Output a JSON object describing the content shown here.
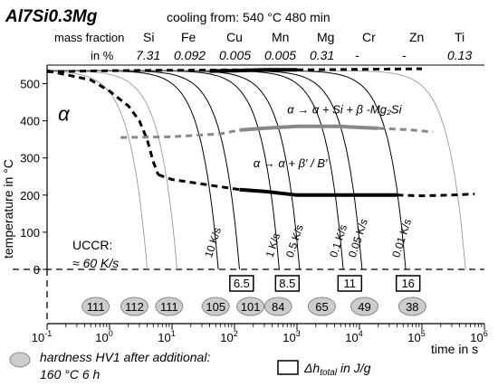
{
  "header": {
    "alloy": "Al7Si0.3Mg",
    "condition": "cooling from: 540 °C 480 min",
    "composition_labels": [
      "mass fraction",
      "in %"
    ],
    "composition": [
      {
        "element": "Si",
        "value": "7.31"
      },
      {
        "element": "Fe",
        "value": "0.092"
      },
      {
        "element": "Cu",
        "value": "0.005"
      },
      {
        "element": "Mn",
        "value": "0.005"
      },
      {
        "element": "Mg",
        "value": "0.31"
      },
      {
        "element": "Cr",
        "value": "-"
      },
      {
        "element": "Zn",
        "value": "-"
      },
      {
        "element": "Ti",
        "value": "0.13"
      }
    ]
  },
  "chart_data": {
    "type": "line",
    "x_scale": "log",
    "xlim": [
      0.1,
      1000000
    ],
    "ylim": [
      0,
      550
    ],
    "xlabel": "time in s",
    "ylabel": "temperature in °C",
    "x_ticks": [
      {
        "value": 0.1,
        "base": "10",
        "exp": "-1"
      },
      {
        "value": 1,
        "base": "10",
        "exp": "0"
      },
      {
        "value": 10,
        "base": "10",
        "exp": "1"
      },
      {
        "value": 100,
        "base": "10",
        "exp": "2"
      },
      {
        "value": 1000,
        "base": "10",
        "exp": "3"
      },
      {
        "value": 10000,
        "base": "10",
        "exp": "4"
      },
      {
        "value": 100000,
        "base": "10",
        "exp": "5"
      },
      {
        "value": 1000000,
        "base": "10",
        "exp": "6"
      }
    ],
    "y_ticks": [
      0,
      100,
      200,
      300,
      400,
      500
    ],
    "cooling_curves": [
      {
        "label": "",
        "t_end": 4
      },
      {
        "label": "",
        "t_end": 12
      },
      {
        "label": "10 K/s",
        "t_end": 55
      },
      {
        "label": "",
        "t_end": 120
      },
      {
        "label": "1 K/s",
        "t_end": 520
      },
      {
        "label": "0.5 K/s",
        "t_end": 1100
      },
      {
        "label": "0.1 K/s",
        "t_end": 5500
      },
      {
        "label": "0.05 K/s",
        "t_end": 11000
      },
      {
        "label": "0.01 K/s",
        "t_end": 55000
      },
      {
        "label": "",
        "t_end": 500000
      }
    ],
    "phase_regions": [
      {
        "label": "α",
        "t": 0.15,
        "T": 400
      },
      {
        "label": "α → α + Si + β -Mg₂Si",
        "t": 700,
        "T": 420
      },
      {
        "label": "α → α + β′ / B′",
        "t": 200,
        "T": 275
      }
    ],
    "phase_lines": [
      {
        "name": "dissolution start",
        "style": "dashed",
        "color": "#000000",
        "points": [
          [
            0.1,
            532
          ],
          [
            0.4,
            534
          ],
          [
            1,
            535
          ],
          [
            5,
            536
          ],
          [
            10,
            536
          ],
          [
            100,
            537
          ],
          [
            1000,
            537
          ],
          [
            5000,
            538
          ],
          [
            100000,
            540
          ]
        ]
      },
      {
        "name": "Si + β-Mg2Si start",
        "style": "solid-bold",
        "color": "#000000",
        "points": [
          [
            40,
            534
          ],
          [
            100,
            535
          ],
          [
            300,
            537
          ],
          [
            1000,
            537
          ]
        ]
      },
      {
        "name": "Si + β-Mg2Si lower (dashed)",
        "style": "dashed",
        "color": "#000000",
        "points": [
          [
            0.1,
            535
          ],
          [
            0.5,
            510
          ],
          [
            1,
            480
          ],
          [
            2,
            440
          ],
          [
            3,
            400
          ],
          [
            4,
            350
          ],
          [
            5,
            290
          ],
          [
            6,
            255
          ]
        ]
      },
      {
        "name": "β-Mg2Si precipitation",
        "style": "solid-bold",
        "color": "#888888",
        "points": [
          [
            120,
            375
          ],
          [
            300,
            380
          ],
          [
            1000,
            385
          ],
          [
            5000,
            385
          ],
          [
            10000,
            382
          ],
          [
            20000,
            380
          ]
        ]
      },
      {
        "name": "β-Mg2Si precipitation (dashed)",
        "style": "dashed",
        "color": "#888888",
        "points": [
          [
            1.5,
            355
          ],
          [
            10,
            357
          ],
          [
            60,
            365
          ],
          [
            120,
            375
          ]
        ]
      },
      {
        "name": "β-Mg2Si precipitation end (dashed)",
        "style": "dashed",
        "color": "#888888",
        "points": [
          [
            20000,
            380
          ],
          [
            60000,
            376
          ],
          [
            150000,
            370
          ]
        ]
      },
      {
        "name": "β′ / B′ precipitation",
        "style": "solid-bold",
        "color": "#000000",
        "points": [
          [
            120,
            215
          ],
          [
            300,
            210
          ],
          [
            1000,
            200
          ],
          [
            5000,
            200
          ],
          [
            20000,
            200
          ],
          [
            40000,
            200
          ]
        ]
      },
      {
        "name": "β′ / B′ precipitation (dashed)",
        "style": "dashed",
        "color": "#000000",
        "points": [
          [
            6,
            255
          ],
          [
            10,
            242
          ],
          [
            30,
            230
          ],
          [
            120,
            215
          ]
        ]
      },
      {
        "name": "β′ / B′ precipitation end (dashed)",
        "style": "dashed",
        "color": "#000000",
        "points": [
          [
            40000,
            200
          ],
          [
            100000,
            198
          ],
          [
            300000,
            200
          ],
          [
            700000,
            203
          ]
        ]
      }
    ],
    "uccr": {
      "label": "UCCR:",
      "value": "≈ 60 K/s"
    },
    "enthalpy_boxes": [
      {
        "t": 130,
        "value": "6.5"
      },
      {
        "t": 700,
        "value": "8.5"
      },
      {
        "t": 7000,
        "value": "11"
      },
      {
        "t": 60000,
        "value": "16"
      }
    ],
    "hardness": [
      {
        "t": 0.6,
        "value": "111"
      },
      {
        "t": 2.5,
        "value": "112"
      },
      {
        "t": 9,
        "value": "111"
      },
      {
        "t": 50,
        "value": "105"
      },
      {
        "t": 180,
        "value": "101"
      },
      {
        "t": 500,
        "value": "84"
      },
      {
        "t": 2500,
        "value": "65"
      },
      {
        "t": 12000,
        "value": "49"
      },
      {
        "t": 70000,
        "value": "38"
      }
    ],
    "legend": {
      "hardness_label": "hardness HV1 after additional: 160 °C 6 h",
      "hardness_line1": "hardness HV1 after additional:",
      "hardness_line2": "160 °C 6 h",
      "enthalpy_label_main": "Δh",
      "enthalpy_label_sub": "total",
      "enthalpy_label_unit": " in J/g"
    },
    "colors": {
      "curve": "#000000",
      "curve_light": "#999999",
      "gray_phase": "#888888",
      "ellipse_fill": "#cccccc",
      "ellipse_stroke": "#888888"
    }
  }
}
